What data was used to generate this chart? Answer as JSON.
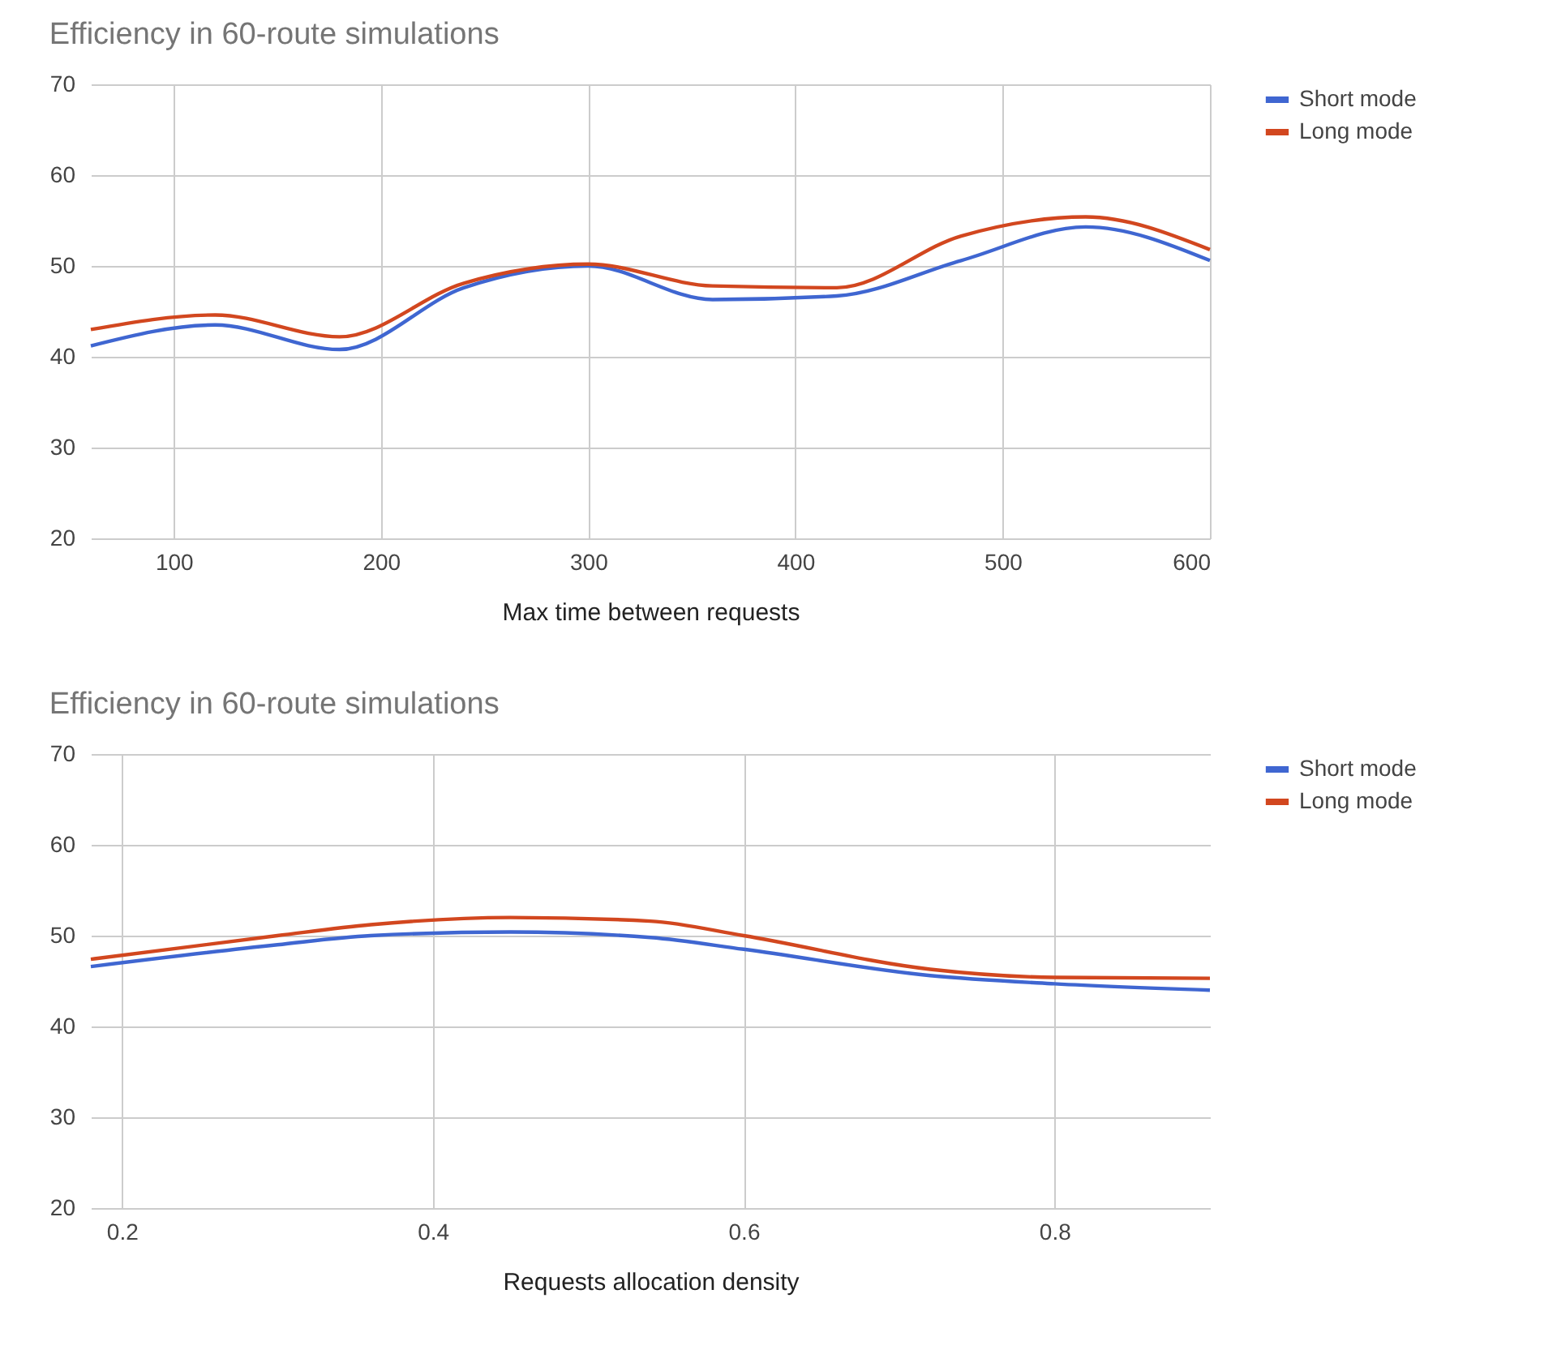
{
  "chart_data": [
    {
      "type": "line",
      "title": "Efficiency in 60-route simulations",
      "xlabel": "Max time between requests",
      "x": [
        60,
        120,
        180,
        240,
        300,
        360,
        420,
        480,
        540,
        600
      ],
      "xlim": [
        60,
        600
      ],
      "xticks": [
        100,
        200,
        300,
        400,
        500,
        600
      ],
      "ylim": [
        20,
        70
      ],
      "yticks": [
        20,
        30,
        40,
        50,
        60,
        70
      ],
      "grid": true,
      "legend": "top right",
      "series": [
        {
          "name": "Short mode",
          "color": "#3f66d1",
          "values": [
            41.2,
            43.5,
            40.8,
            47.6,
            50.0,
            46.3,
            46.7,
            50.6,
            54.3,
            50.6
          ]
        },
        {
          "name": "Long mode",
          "color": "#d2471f",
          "values": [
            43.0,
            44.6,
            42.2,
            48.1,
            50.2,
            47.8,
            47.6,
            53.3,
            55.4,
            51.8
          ]
        }
      ]
    },
    {
      "type": "line",
      "title": "Efficiency in 60-route simulations",
      "xlabel": "Requests allocation density",
      "x": [
        0.18,
        0.3,
        0.36,
        0.45,
        0.54,
        0.6,
        0.72,
        0.8,
        0.9
      ],
      "xlim": [
        0.18,
        0.9
      ],
      "xticks": [
        0.2,
        0.4,
        0.6,
        0.8
      ],
      "ylim": [
        20,
        70
      ],
      "yticks": [
        20,
        30,
        40,
        50,
        60,
        70
      ],
      "grid": true,
      "legend": "top right",
      "series": [
        {
          "name": "Short mode",
          "color": "#3f66d1",
          "values": [
            46.6,
            49.0,
            50.0,
            50.4,
            49.8,
            48.5,
            45.6,
            44.7,
            44.0
          ]
        },
        {
          "name": "Long mode",
          "color": "#d2471f",
          "values": [
            47.4,
            50.0,
            51.2,
            52.0,
            51.6,
            50.0,
            46.3,
            45.4,
            45.3
          ]
        }
      ]
    }
  ]
}
